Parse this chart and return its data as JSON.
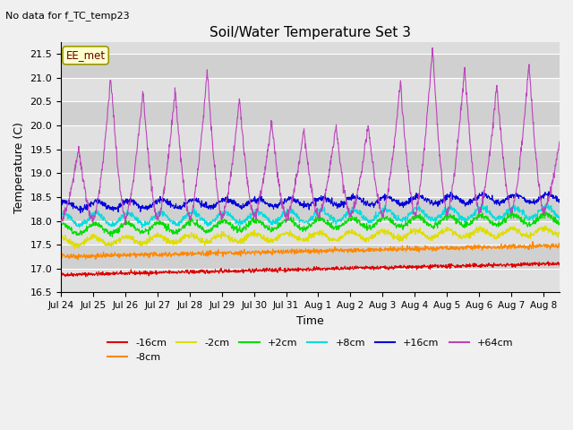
{
  "title": "Soil/Water Temperature Set 3",
  "subtitle": "No data for f_TC_temp23",
  "xlabel": "Time",
  "ylabel": "Temperature (C)",
  "ylim": [
    16.5,
    21.75
  ],
  "yticks": [
    16.5,
    17.0,
    17.5,
    18.0,
    18.5,
    19.0,
    19.5,
    20.0,
    20.5,
    21.0,
    21.5
  ],
  "xtick_labels": [
    "Jul 24",
    "Jul 25",
    "Jul 26",
    "Jul 27",
    "Jul 28",
    "Jul 29",
    "Jul 30",
    "Jul 31",
    "Aug 1",
    "Aug 2",
    "Aug 3",
    "Aug 4",
    "Aug 5",
    "Aug 6",
    "Aug 7",
    "Aug 8"
  ],
  "series_colors": {
    "-16cm": "#dd0000",
    "-8cm": "#ff8800",
    "-2cm": "#dddd00",
    "+2cm": "#00dd00",
    "+8cm": "#00dddd",
    "+16cm": "#0000dd",
    "+64cm": "#bb44bb"
  },
  "legend_label": "EE_met",
  "fig_bg_color": "#f0f0f0",
  "plot_bg_color": "#dcdcdc",
  "plot_bg_alt": "#e8e8e8",
  "grid_color": "#ffffff"
}
